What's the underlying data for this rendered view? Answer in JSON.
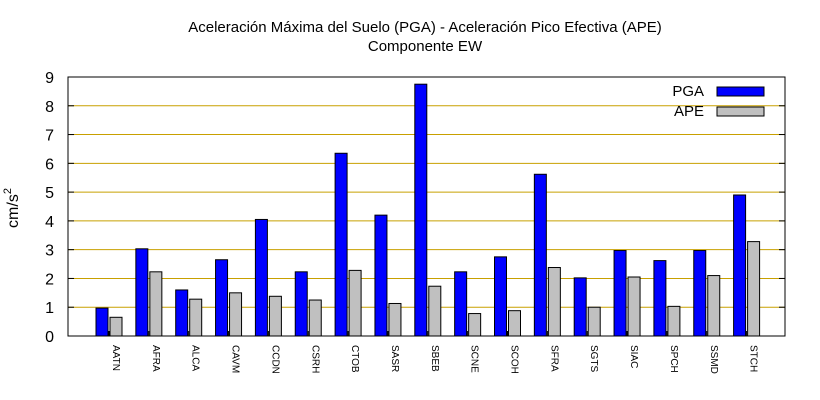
{
  "chart_data": {
    "type": "bar",
    "title": "Aceleración Máxima del Suelo (PGA) -  Aceleración Pico Efectiva (APE)",
    "subtitle": "Componente EW",
    "xlabel": "",
    "ylabel": "cm/s",
    "ylabel_superscript": "2",
    "ylim": [
      0,
      9
    ],
    "yticks": [
      "0",
      "1",
      "2",
      "3",
      "4",
      "5",
      "6",
      "7",
      "8",
      "9"
    ],
    "grid": "horizontal",
    "grid_color": "#c8a000",
    "legend_position": "top-right",
    "categories": [
      "AATN",
      "AFRA",
      "ALCA",
      "CAVM",
      "CCDN",
      "CSRH",
      "CTOB",
      "SASR",
      "SBEB",
      "SCNE",
      "SCOH",
      "SFRA",
      "SGTS",
      "SIAC",
      "SPCH",
      "SSMD",
      "STCH"
    ],
    "series": [
      {
        "name": "PGA",
        "color": "#0000ff",
        "values": [
          0.97,
          3.03,
          1.6,
          2.65,
          4.05,
          2.23,
          6.35,
          4.2,
          8.75,
          2.23,
          2.75,
          5.62,
          2.02,
          2.97,
          2.62,
          2.97,
          4.9
        ]
      },
      {
        "name": "APE",
        "color": "#c0c0c0",
        "values": [
          0.65,
          2.23,
          1.28,
          1.5,
          1.38,
          1.25,
          2.28,
          1.13,
          1.73,
          0.78,
          0.88,
          2.38,
          1.0,
          2.05,
          1.03,
          2.1,
          3.28
        ]
      }
    ]
  }
}
